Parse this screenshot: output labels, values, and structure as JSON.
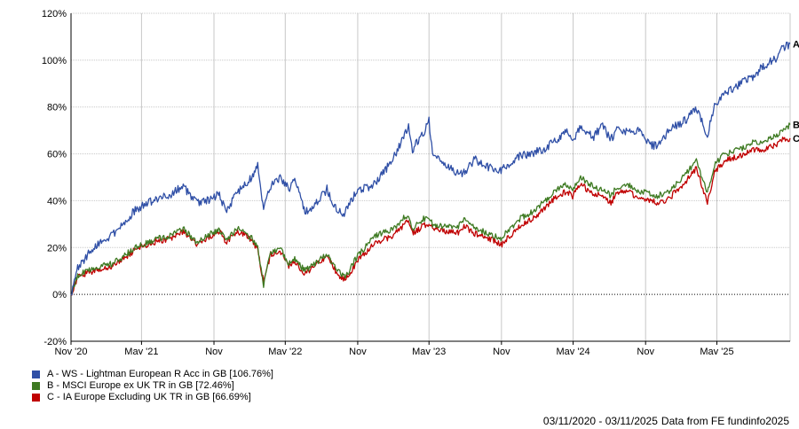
{
  "chart_data": {
    "type": "line",
    "y_axis": {
      "min": -20,
      "max": 120,
      "ticks": [
        -20,
        0,
        20,
        40,
        60,
        80,
        100,
        120
      ],
      "tick_suffix": "%"
    },
    "x_axis": {
      "start": "2020-11-03",
      "end": "2025-11-03",
      "ticks": [
        {
          "date": "2020-11-03",
          "label": "Nov '20"
        },
        {
          "date": "2021-05-01",
          "label": "May '21"
        },
        {
          "date": "2021-11-01",
          "label": "Nov"
        },
        {
          "date": "2022-05-01",
          "label": "May '22"
        },
        {
          "date": "2022-11-01",
          "label": "Nov"
        },
        {
          "date": "2023-05-01",
          "label": "May '23"
        },
        {
          "date": "2023-11-01",
          "label": "Nov"
        },
        {
          "date": "2024-05-01",
          "label": "May '24"
        },
        {
          "date": "2024-11-01",
          "label": "Nov"
        },
        {
          "date": "2025-05-01",
          "label": "May '25"
        }
      ]
    },
    "grid": true,
    "zero_line": "dotted",
    "legend_position": "bottom-left",
    "series": [
      {
        "id": "A",
        "name": "A - WS - Lightman European R Acc in GB [106.76%]",
        "color": "#2f4fa6",
        "points": [
          [
            "2020-11-03",
            0
          ],
          [
            "2020-11-20",
            11
          ],
          [
            "2020-12-15",
            17
          ],
          [
            "2021-01-15",
            22
          ],
          [
            "2021-02-15",
            25
          ],
          [
            "2021-03-15",
            30
          ],
          [
            "2021-04-15",
            36
          ],
          [
            "2021-05-15",
            39
          ],
          [
            "2021-06-15",
            41
          ],
          [
            "2021-07-15",
            43
          ],
          [
            "2021-08-15",
            46
          ],
          [
            "2021-09-20",
            39
          ],
          [
            "2021-10-15",
            40
          ],
          [
            "2021-11-15",
            43
          ],
          [
            "2021-12-01",
            35
          ],
          [
            "2021-12-31",
            44
          ],
          [
            "2022-01-20",
            47
          ],
          [
            "2022-02-05",
            50
          ],
          [
            "2022-02-20",
            55
          ],
          [
            "2022-03-07",
            36
          ],
          [
            "2022-03-25",
            46
          ],
          [
            "2022-04-20",
            50
          ],
          [
            "2022-05-10",
            45
          ],
          [
            "2022-05-25",
            50
          ],
          [
            "2022-06-20",
            35
          ],
          [
            "2022-07-15",
            38
          ],
          [
            "2022-08-15",
            45
          ],
          [
            "2022-09-10",
            35
          ],
          [
            "2022-09-30",
            35
          ],
          [
            "2022-10-30",
            44
          ],
          [
            "2022-12-15",
            47
          ],
          [
            "2023-01-31",
            58
          ],
          [
            "2023-02-28",
            68
          ],
          [
            "2023-03-10",
            72
          ],
          [
            "2023-03-20",
            62
          ],
          [
            "2023-04-15",
            68
          ],
          [
            "2023-05-01",
            74
          ],
          [
            "2023-05-10",
            60
          ],
          [
            "2023-06-10",
            56
          ],
          [
            "2023-07-10",
            52
          ],
          [
            "2023-07-31",
            52
          ],
          [
            "2023-08-25",
            58
          ],
          [
            "2023-09-15",
            55
          ],
          [
            "2023-10-15",
            54
          ],
          [
            "2023-10-31",
            53
          ],
          [
            "2023-12-15",
            59
          ],
          [
            "2024-01-15",
            60
          ],
          [
            "2024-02-15",
            62
          ],
          [
            "2024-03-15",
            65
          ],
          [
            "2024-04-15",
            70
          ],
          [
            "2024-04-30",
            66
          ],
          [
            "2024-05-20",
            72
          ],
          [
            "2024-06-20",
            67
          ],
          [
            "2024-07-15",
            72
          ],
          [
            "2024-08-05",
            66
          ],
          [
            "2024-08-20",
            71
          ],
          [
            "2024-09-15",
            69
          ],
          [
            "2024-10-15",
            70
          ],
          [
            "2024-11-15",
            64
          ],
          [
            "2024-12-01",
            63
          ],
          [
            "2024-12-31",
            70
          ],
          [
            "2025-02-15",
            75
          ],
          [
            "2025-03-10",
            80
          ],
          [
            "2025-04-07",
            68
          ],
          [
            "2025-04-25",
            81
          ],
          [
            "2025-05-20",
            86
          ],
          [
            "2025-06-30",
            90
          ],
          [
            "2025-07-31",
            93
          ],
          [
            "2025-08-31",
            98
          ],
          [
            "2025-09-30",
            101
          ],
          [
            "2025-10-15",
            105
          ],
          [
            "2025-11-03",
            107
          ]
        ]
      },
      {
        "id": "B",
        "name": "B - MSCI Europe ex UK TR in GB [72.46%]",
        "color": "#3e7a22",
        "points": [
          [
            "2020-11-03",
            0
          ],
          [
            "2020-11-20",
            8
          ],
          [
            "2020-12-15",
            10
          ],
          [
            "2021-01-15",
            12
          ],
          [
            "2021-02-15",
            13
          ],
          [
            "2021-03-15",
            16
          ],
          [
            "2021-04-15",
            20
          ],
          [
            "2021-05-15",
            22
          ],
          [
            "2021-06-15",
            24
          ],
          [
            "2021-07-15",
            25
          ],
          [
            "2021-08-15",
            28
          ],
          [
            "2021-09-20",
            22
          ],
          [
            "2021-10-15",
            25
          ],
          [
            "2021-11-15",
            28
          ],
          [
            "2021-12-01",
            23
          ],
          [
            "2021-12-31",
            28
          ],
          [
            "2022-01-20",
            26
          ],
          [
            "2022-02-05",
            24
          ],
          [
            "2022-02-20",
            20
          ],
          [
            "2022-03-07",
            4
          ],
          [
            "2022-03-25",
            18
          ],
          [
            "2022-04-20",
            19
          ],
          [
            "2022-05-10",
            13
          ],
          [
            "2022-05-25",
            15
          ],
          [
            "2022-06-20",
            10
          ],
          [
            "2022-07-15",
            13
          ],
          [
            "2022-08-15",
            17
          ],
          [
            "2022-09-10",
            10
          ],
          [
            "2022-09-30",
            7
          ],
          [
            "2022-10-30",
            16
          ],
          [
            "2022-12-15",
            25
          ],
          [
            "2023-01-31",
            28
          ],
          [
            "2023-02-28",
            33
          ],
          [
            "2023-03-10",
            34
          ],
          [
            "2023-03-20",
            28
          ],
          [
            "2023-04-15",
            32
          ],
          [
            "2023-05-01",
            33
          ],
          [
            "2023-05-10",
            30
          ],
          [
            "2023-06-10",
            29
          ],
          [
            "2023-07-10",
            28
          ],
          [
            "2023-07-31",
            32
          ],
          [
            "2023-08-25",
            28
          ],
          [
            "2023-09-15",
            27
          ],
          [
            "2023-10-15",
            25
          ],
          [
            "2023-10-31",
            24
          ],
          [
            "2023-12-15",
            32
          ],
          [
            "2024-01-15",
            35
          ],
          [
            "2024-02-15",
            39
          ],
          [
            "2024-03-15",
            44
          ],
          [
            "2024-04-15",
            47
          ],
          [
            "2024-04-30",
            45
          ],
          [
            "2024-05-20",
            50
          ],
          [
            "2024-06-20",
            46
          ],
          [
            "2024-07-15",
            45
          ],
          [
            "2024-08-05",
            42
          ],
          [
            "2024-08-20",
            46
          ],
          [
            "2024-09-15",
            47
          ],
          [
            "2024-10-15",
            44
          ],
          [
            "2024-11-15",
            43
          ],
          [
            "2024-12-01",
            42
          ],
          [
            "2024-12-31",
            44
          ],
          [
            "2025-02-15",
            52
          ],
          [
            "2025-03-10",
            57
          ],
          [
            "2025-04-07",
            43
          ],
          [
            "2025-04-25",
            55
          ],
          [
            "2025-05-20",
            60
          ],
          [
            "2025-06-30",
            62
          ],
          [
            "2025-07-31",
            65
          ],
          [
            "2025-08-31",
            65
          ],
          [
            "2025-09-30",
            68
          ],
          [
            "2025-10-15",
            70
          ],
          [
            "2025-11-03",
            72.5
          ]
        ]
      },
      {
        "id": "C",
        "name": "C - IA Europe Excluding UK TR in GB [66.69%]",
        "color": "#c00000",
        "points": [
          [
            "2020-11-03",
            0
          ],
          [
            "2020-11-20",
            7
          ],
          [
            "2020-12-15",
            9
          ],
          [
            "2021-01-15",
            11
          ],
          [
            "2021-02-15",
            12
          ],
          [
            "2021-03-15",
            15
          ],
          [
            "2021-04-15",
            19
          ],
          [
            "2021-05-15",
            21
          ],
          [
            "2021-06-15",
            23
          ],
          [
            "2021-07-15",
            24
          ],
          [
            "2021-08-15",
            27
          ],
          [
            "2021-09-20",
            21
          ],
          [
            "2021-10-15",
            24
          ],
          [
            "2021-11-15",
            27
          ],
          [
            "2021-12-01",
            22
          ],
          [
            "2021-12-31",
            27
          ],
          [
            "2022-01-20",
            25
          ],
          [
            "2022-02-05",
            23
          ],
          [
            "2022-02-20",
            19
          ],
          [
            "2022-03-07",
            5
          ],
          [
            "2022-03-25",
            17
          ],
          [
            "2022-04-20",
            18
          ],
          [
            "2022-05-10",
            12
          ],
          [
            "2022-05-25",
            14
          ],
          [
            "2022-06-20",
            9
          ],
          [
            "2022-07-15",
            12
          ],
          [
            "2022-08-15",
            16
          ],
          [
            "2022-09-10",
            9
          ],
          [
            "2022-09-30",
            6
          ],
          [
            "2022-10-30",
            14
          ],
          [
            "2022-12-15",
            22
          ],
          [
            "2023-01-31",
            25
          ],
          [
            "2023-02-28",
            30
          ],
          [
            "2023-03-10",
            31
          ],
          [
            "2023-03-20",
            26
          ],
          [
            "2023-04-15",
            29
          ],
          [
            "2023-05-01",
            30
          ],
          [
            "2023-05-10",
            28
          ],
          [
            "2023-06-10",
            27
          ],
          [
            "2023-07-10",
            26
          ],
          [
            "2023-07-31",
            29
          ],
          [
            "2023-08-25",
            26
          ],
          [
            "2023-09-15",
            25
          ],
          [
            "2023-10-15",
            23
          ],
          [
            "2023-10-31",
            21
          ],
          [
            "2023-12-15",
            29
          ],
          [
            "2024-01-15",
            32
          ],
          [
            "2024-02-15",
            36
          ],
          [
            "2024-03-15",
            41
          ],
          [
            "2024-04-15",
            44
          ],
          [
            "2024-04-30",
            42
          ],
          [
            "2024-05-20",
            47
          ],
          [
            "2024-06-20",
            43
          ],
          [
            "2024-07-15",
            42
          ],
          [
            "2024-08-05",
            39
          ],
          [
            "2024-08-20",
            43
          ],
          [
            "2024-09-15",
            44
          ],
          [
            "2024-10-15",
            41
          ],
          [
            "2024-11-15",
            40
          ],
          [
            "2024-12-01",
            39
          ],
          [
            "2024-12-31",
            41
          ],
          [
            "2025-02-15",
            49
          ],
          [
            "2025-03-10",
            54
          ],
          [
            "2025-04-07",
            39
          ],
          [
            "2025-04-25",
            52
          ],
          [
            "2025-05-20",
            57
          ],
          [
            "2025-06-30",
            59
          ],
          [
            "2025-07-31",
            62
          ],
          [
            "2025-08-31",
            62
          ],
          [
            "2025-09-30",
            64
          ],
          [
            "2025-10-15",
            66
          ],
          [
            "2025-11-03",
            66.7
          ]
        ]
      }
    ]
  },
  "footer": {
    "period": "03/11/2020 - 03/11/2025",
    "source": "Data from FE fundinfo2025"
  }
}
